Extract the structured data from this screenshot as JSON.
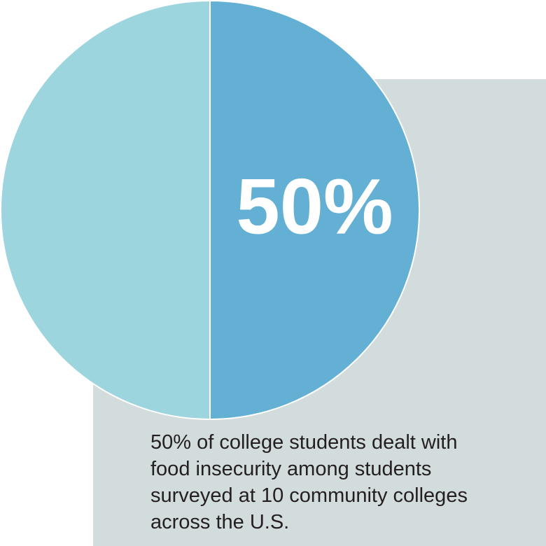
{
  "chart_data": {
    "type": "pie",
    "values": [
      50,
      50
    ],
    "value_labels": [
      "50%",
      null
    ],
    "colors": [
      "#63b0d4",
      "#9dd5df"
    ],
    "annotation": [
      "50% of college students dealt with",
      "food insecurity among students",
      "surveyed at 10 community colleges",
      "across the U.S."
    ]
  }
}
